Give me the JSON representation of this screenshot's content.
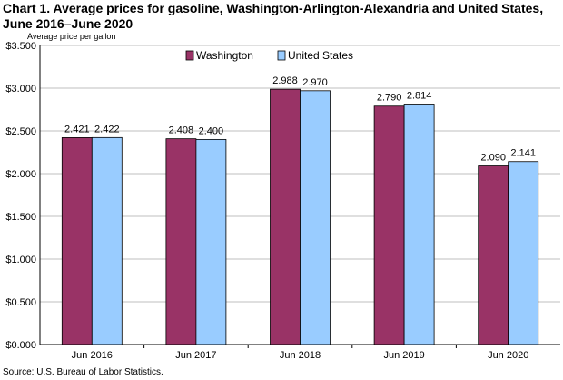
{
  "title": "Chart 1. Average prices for gasoline, Washington-Arlington-Alexandria and United States, June 2016–June 2020",
  "source": "Source: U.S. Bureau of Labor Statistics.",
  "chart_data": {
    "type": "bar",
    "ylabel": "Average  price per gallon",
    "xlabel": "",
    "categories": [
      "Jun 2016",
      "Jun 2017",
      "Jun 2018",
      "Jun 2019",
      "Jun 2020"
    ],
    "series": [
      {
        "name": "Washington",
        "values": [
          2.421,
          2.408,
          2.988,
          2.79,
          2.09
        ],
        "labels": [
          "2.421",
          "2.408",
          "2.988",
          "2.790",
          "2.090"
        ],
        "color": "#993366"
      },
      {
        "name": "United States",
        "values": [
          2.422,
          2.4,
          2.97,
          2.814,
          2.141
        ],
        "labels": [
          "2.422",
          "2.400",
          "2.970",
          "2.814",
          "2.141"
        ],
        "color": "#99ccff"
      }
    ],
    "ylim": [
      0,
      3.5
    ],
    "yticks": [
      "$0.000",
      "$0.500",
      "$1.000",
      "$1.500",
      "$2.000",
      "$2.500",
      "$3.000",
      "$3.500"
    ],
    "ytick_values": [
      0,
      0.5,
      1,
      1.5,
      2,
      2.5,
      3,
      3.5
    ],
    "grid": true,
    "legend_position": "top-center"
  }
}
